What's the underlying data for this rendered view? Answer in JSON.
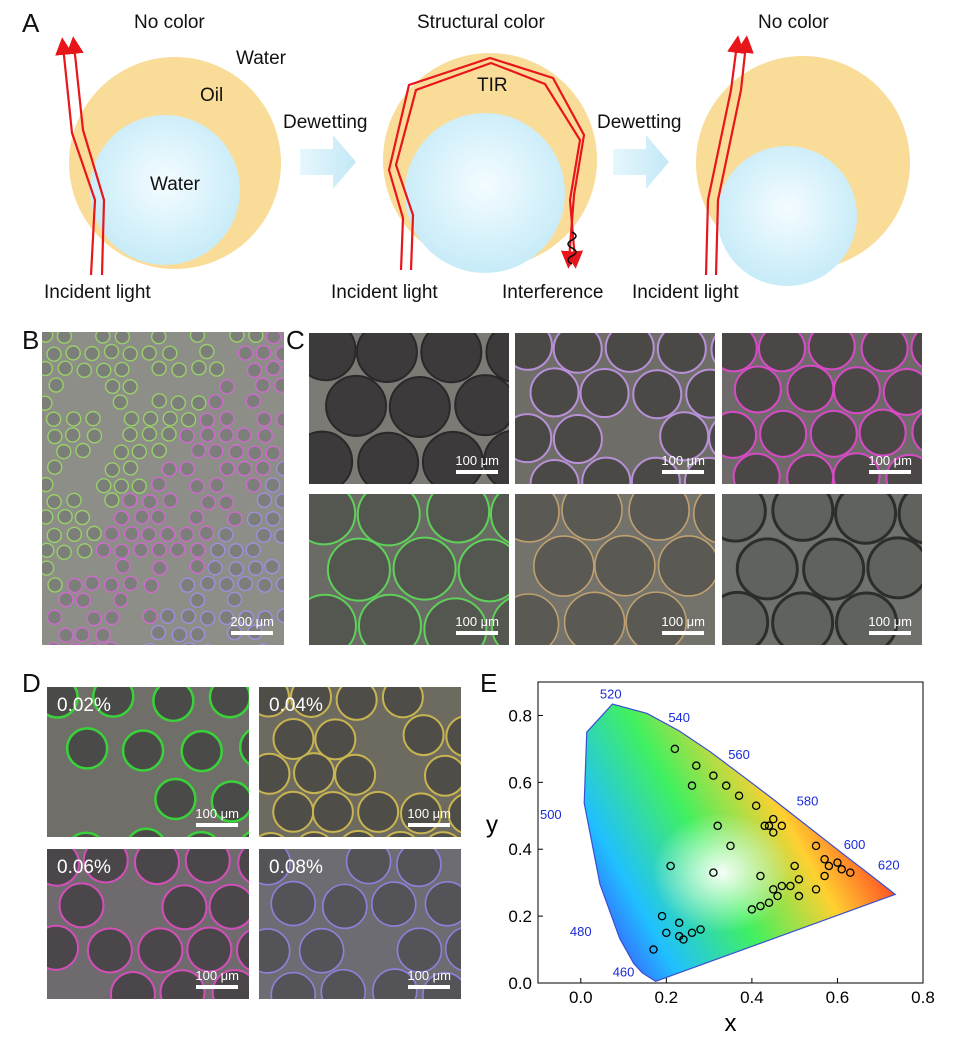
{
  "panel_labels": {
    "a": "A",
    "b": "B",
    "c": "C",
    "d": "D",
    "e": "E"
  },
  "panel_a": {
    "left": {
      "title": "No color",
      "water_outer": "Water",
      "oil": "Oil",
      "water_inner": "Water",
      "incident": "Incident light"
    },
    "middle": {
      "title": "Structural color",
      "tir": "TIR",
      "incident": "Incident light",
      "interference": "Interference"
    },
    "right": {
      "title": "No color",
      "incident": "Incident light"
    },
    "arrow1_label": "Dewetting",
    "arrow2_label": "Dewetting",
    "colors": {
      "oil": "#f9dc98",
      "water": "#cfeef9",
      "ray": "#e8151b",
      "arrow": "#cdeefa"
    }
  },
  "panel_b": {
    "scale": "200 μm"
  },
  "panel_c": {
    "scales": [
      "100 μm",
      "100 μm",
      "100 μm",
      "100 μm",
      "100 μm",
      "100 μm"
    ]
  },
  "panel_d": {
    "tiles": [
      {
        "conc": "0.02%",
        "scale": "100 μm"
      },
      {
        "conc": "0.04%",
        "scale": "100 μm"
      },
      {
        "conc": "0.06%",
        "scale": "100 μm"
      },
      {
        "conc": "0.08%",
        "scale": "100 μm"
      }
    ]
  },
  "chart_data": {
    "type": "scatter",
    "xlabel": "x",
    "ylabel": "y",
    "xlim": [
      -0.1,
      0.8
    ],
    "ylim": [
      0.0,
      0.9
    ],
    "xticks": [
      "0.0",
      "0.2",
      "0.4",
      "0.6",
      "0.8"
    ],
    "yticks": [
      "0.0",
      "0.2",
      "0.4",
      "0.6",
      "0.8"
    ],
    "wavelength_labels": [
      "520",
      "540",
      "560",
      "580",
      "600",
      "620",
      "500",
      "480",
      "460"
    ],
    "points": [
      {
        "x": 0.22,
        "y": 0.7
      },
      {
        "x": 0.27,
        "y": 0.65
      },
      {
        "x": 0.26,
        "y": 0.59
      },
      {
        "x": 0.31,
        "y": 0.62
      },
      {
        "x": 0.34,
        "y": 0.59
      },
      {
        "x": 0.37,
        "y": 0.56
      },
      {
        "x": 0.41,
        "y": 0.53
      },
      {
        "x": 0.45,
        "y": 0.49
      },
      {
        "x": 0.44,
        "y": 0.47
      },
      {
        "x": 0.45,
        "y": 0.45
      },
      {
        "x": 0.43,
        "y": 0.47
      },
      {
        "x": 0.47,
        "y": 0.47
      },
      {
        "x": 0.32,
        "y": 0.47
      },
      {
        "x": 0.35,
        "y": 0.41
      },
      {
        "x": 0.31,
        "y": 0.33
      },
      {
        "x": 0.21,
        "y": 0.35
      },
      {
        "x": 0.55,
        "y": 0.41
      },
      {
        "x": 0.57,
        "y": 0.37
      },
      {
        "x": 0.58,
        "y": 0.35
      },
      {
        "x": 0.6,
        "y": 0.36
      },
      {
        "x": 0.61,
        "y": 0.34
      },
      {
        "x": 0.63,
        "y": 0.33
      },
      {
        "x": 0.57,
        "y": 0.32
      },
      {
        "x": 0.5,
        "y": 0.35
      },
      {
        "x": 0.42,
        "y": 0.32
      },
      {
        "x": 0.45,
        "y": 0.28
      },
      {
        "x": 0.47,
        "y": 0.29
      },
      {
        "x": 0.49,
        "y": 0.29
      },
      {
        "x": 0.51,
        "y": 0.31
      },
      {
        "x": 0.55,
        "y": 0.28
      },
      {
        "x": 0.51,
        "y": 0.26
      },
      {
        "x": 0.44,
        "y": 0.24
      },
      {
        "x": 0.42,
        "y": 0.23
      },
      {
        "x": 0.4,
        "y": 0.22
      },
      {
        "x": 0.46,
        "y": 0.26
      },
      {
        "x": 0.19,
        "y": 0.2
      },
      {
        "x": 0.2,
        "y": 0.15
      },
      {
        "x": 0.23,
        "y": 0.18
      },
      {
        "x": 0.24,
        "y": 0.13
      },
      {
        "x": 0.23,
        "y": 0.14
      },
      {
        "x": 0.26,
        "y": 0.15
      },
      {
        "x": 0.28,
        "y": 0.16
      },
      {
        "x": 0.17,
        "y": 0.1
      }
    ]
  }
}
